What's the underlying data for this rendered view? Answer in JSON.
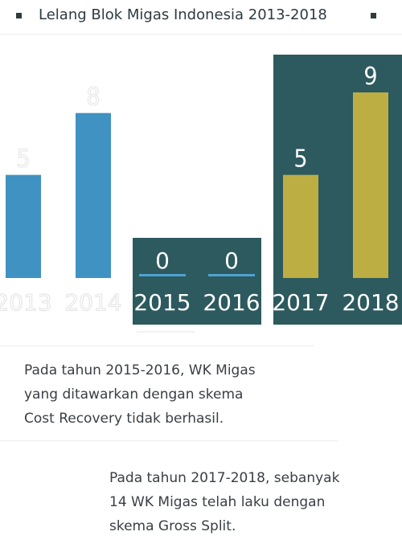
{
  "header": {
    "title": "Lelang Blok Migas Indonesia 2013-2018"
  },
  "chart_data": {
    "type": "bar",
    "title": "Lelang Blok Migas Indonesia 2013-2018",
    "categories": [
      "2013",
      "2014",
      "2015",
      "2016",
      "2017",
      "2018"
    ],
    "values": [
      5,
      8,
      0,
      0,
      5,
      9
    ],
    "ylim": [
      0,
      9
    ],
    "grid": false,
    "groups": [
      {
        "years": [
          "2013",
          "2014"
        ],
        "scheme": "past"
      },
      {
        "years": [
          "2015",
          "2016"
        ],
        "scheme": "Cost Recovery"
      },
      {
        "years": [
          "2017",
          "2018"
        ],
        "scheme": "Gross Split"
      }
    ],
    "colors": {
      "bar_early": "#4092c2",
      "panel_dark": "#2d5a5e",
      "bar_gold": "#bdae43",
      "zero_line": "#4fa3d1"
    }
  },
  "captions": [
    {
      "lines": [
        "Pada tahun 2015-2016, WK Migas",
        "yang ditawarkan dengan skema",
        "Cost Recovery tidak berhasil."
      ]
    },
    {
      "lines": [
        "Pada tahun 2017-2018, sebanyak",
        "14 WK Migas telah laku dengan",
        "skema Gross Split."
      ]
    }
  ]
}
